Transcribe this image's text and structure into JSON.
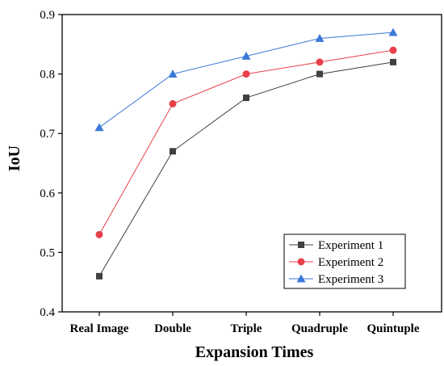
{
  "chart_data": {
    "type": "line",
    "title": "",
    "xlabel": "Expansion Times",
    "ylabel": "IoU",
    "categories": [
      "Real Image",
      "Double",
      "Triple",
      "Quadruple",
      "Quintuple"
    ],
    "ylim": [
      0.4,
      0.9
    ],
    "yticks": [
      "0.4",
      "0.5",
      "0.6",
      "0.7",
      "0.8",
      "0.9"
    ],
    "grid": false,
    "legend_position": "bottom-right",
    "series": [
      {
        "name": "Experiment 1",
        "values": [
          0.46,
          0.67,
          0.76,
          0.8,
          0.82
        ],
        "color": "#404040",
        "marker": "square"
      },
      {
        "name": "Experiment 2",
        "values": [
          0.53,
          0.75,
          0.8,
          0.82,
          0.84
        ],
        "color": "#e8404a",
        "marker": "circle"
      },
      {
        "name": "Experiment 3",
        "values": [
          0.71,
          0.8,
          0.83,
          0.86,
          0.87
        ],
        "color": "#3a78d8",
        "marker": "triangle"
      }
    ]
  }
}
